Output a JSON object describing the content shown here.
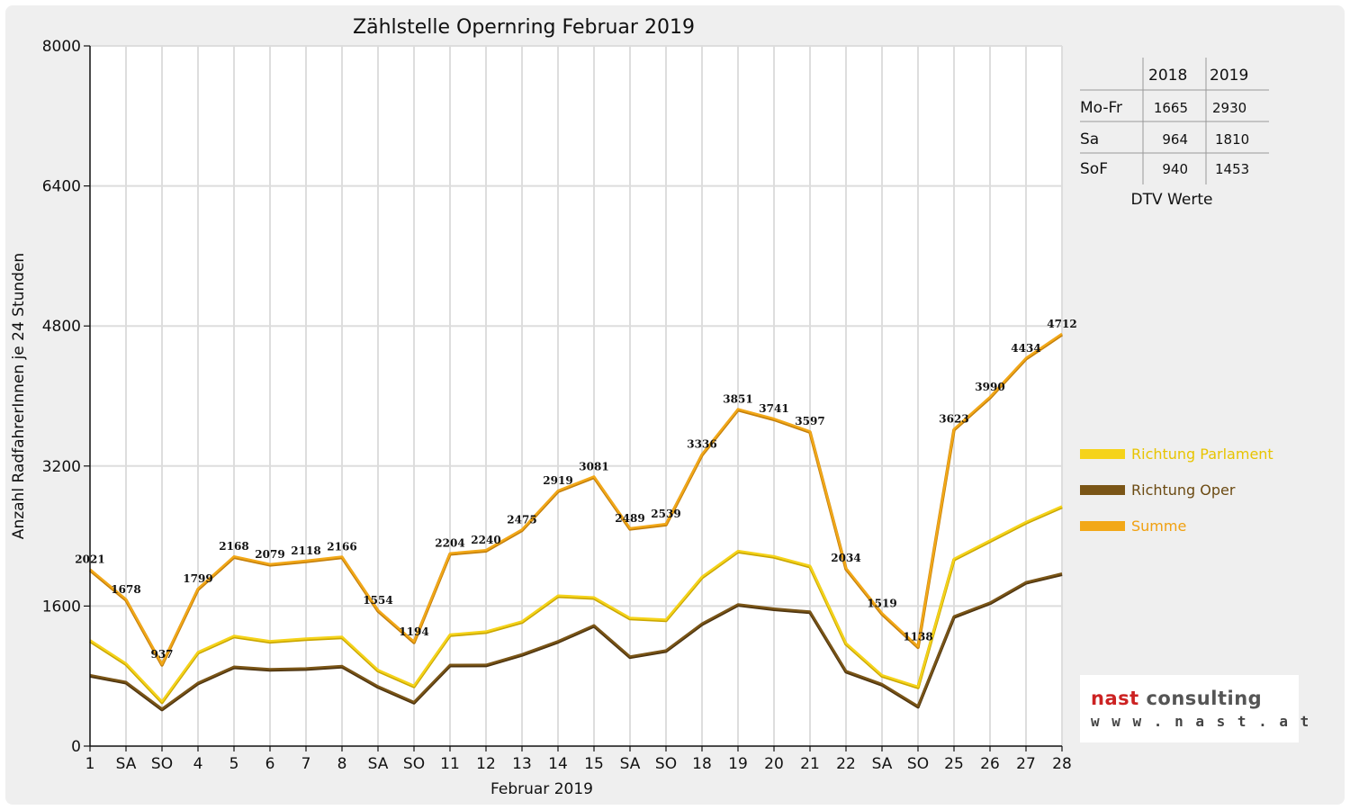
{
  "chart_data": {
    "type": "line",
    "title": "Zählstelle Opernring Februar 2019",
    "xlabel": "Februar 2019",
    "ylabel": "Anzahl RadfahrerInnen je 24 Stunden",
    "ylim": [
      0,
      8000
    ],
    "yticks": [
      0,
      1600,
      3200,
      4800,
      6400,
      8000
    ],
    "grid": true,
    "legend_position": "right",
    "categories": [
      "1",
      "SA",
      "SO",
      "4",
      "5",
      "6",
      "7",
      "8",
      "SA",
      "SO",
      "11",
      "12",
      "13",
      "14",
      "15",
      "SA",
      "SO",
      "18",
      "19",
      "20",
      "21",
      "22",
      "SA",
      "SO",
      "25",
      "26",
      "27",
      "28"
    ],
    "highlight_categories": {
      "SO": "#dd0000"
    },
    "series": [
      {
        "name": "Richtung Parlament",
        "color": "#f5d31a",
        "values": [
          1210,
          945,
          510,
          1075,
          1260,
          1200,
          1230,
          1250,
          870,
          690,
          1275,
          1310,
          1425,
          1720,
          1700,
          1465,
          1445,
          1935,
          2230,
          2170,
          2060,
          1175,
          810,
          680,
          2140,
          2350,
          2560,
          2740
        ]
      },
      {
        "name": "Richtung Oper",
        "color": "#7a5516",
        "values": [
          811,
          733,
          427,
          724,
          908,
          879,
          888,
          916,
          684,
          504,
          929,
          930,
          1050,
          1199,
          1381,
          1024,
          1094,
          1401,
          1621,
          1571,
          1537,
          859,
          709,
          458,
          1483,
          1640,
          1874,
          1972
        ]
      },
      {
        "name": "Summe",
        "color": "#f2a818",
        "values": [
          2021,
          1678,
          937,
          1799,
          2168,
          2079,
          2118,
          2166,
          1554,
          1194,
          2204,
          2240,
          2475,
          2919,
          3081,
          2489,
          2539,
          3336,
          3851,
          3741,
          3597,
          2034,
          1519,
          1138,
          3623,
          3990,
          4434,
          4712
        ]
      }
    ],
    "data_labels": [
      2021,
      1678,
      937,
      1799,
      2168,
      2079,
      2118,
      2166,
      1554,
      1194,
      2204,
      2240,
      2475,
      2919,
      3081,
      2489,
      2539,
      3336,
      3851,
      3741,
      3597,
      2034,
      1519,
      1138,
      3623,
      3990,
      4434,
      4712
    ]
  },
  "dtv_table": {
    "columns": [
      "2018",
      "2019"
    ],
    "rows": [
      {
        "label": "Mo-Fr",
        "values": [
          "1665",
          "2930"
        ]
      },
      {
        "label": "Sa",
        "values": [
          "964",
          "1810"
        ]
      },
      {
        "label": "SoF",
        "values": [
          "940",
          "1453"
        ]
      }
    ],
    "caption": "DTV Werte"
  },
  "logo": {
    "name_part1": "nast",
    "name_part2": "consulting",
    "url": "w w w . n a s t . a t"
  }
}
